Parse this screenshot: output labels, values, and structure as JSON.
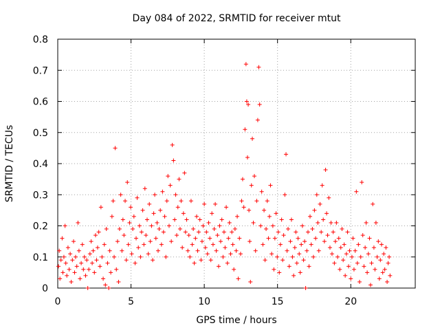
{
  "chart_data": {
    "type": "scatter",
    "title": "Day 084 of 2022, SRMTID for receiver mtut",
    "xlabel": "GPS time / hours",
    "ylabel": "SRMTID / TECUs",
    "xlim": [
      0,
      24.4
    ],
    "ylim": [
      0,
      0.8
    ],
    "xticks": [
      0,
      5,
      10,
      15,
      20
    ],
    "xtick_labels": [
      "0",
      "5",
      "10",
      "15",
      "20"
    ],
    "yticks": [
      0,
      0.1,
      0.2,
      0.3,
      0.4,
      0.5,
      0.6,
      0.7,
      0.8
    ],
    "ytick_labels": [
      "0",
      "0.1",
      "0.2",
      "0.3",
      "0.4",
      "0.5",
      "0.6",
      "0.7",
      "0.8"
    ],
    "grid": true,
    "marker": "+",
    "series": [
      {
        "name": "SRMTID",
        "color": "#ff0000",
        "x_range_hours": [
          0,
          22.7
        ],
        "points": [
          [
            0.05,
            0.07
          ],
          [
            0.1,
            0.12
          ],
          [
            0.15,
            0.03
          ],
          [
            0.22,
            0.09
          ],
          [
            0.3,
            0.16
          ],
          [
            0.35,
            0.05
          ],
          [
            0.42,
            0.1
          ],
          [
            0.5,
            0.2
          ],
          [
            0.55,
            0.08
          ],
          [
            0.62,
            0.04
          ],
          [
            0.7,
            0.13
          ],
          [
            0.78,
            0.06
          ],
          [
            0.85,
            0.11
          ],
          [
            0.92,
            0.02
          ],
          [
            1.0,
            0.09
          ],
          [
            1.08,
            0.15
          ],
          [
            1.15,
            0.05
          ],
          [
            1.22,
            0.1
          ],
          [
            1.3,
            0.07
          ],
          [
            1.38,
            0.21
          ],
          [
            1.45,
            0.12
          ],
          [
            1.52,
            0.03
          ],
          [
            1.6,
            0.08
          ],
          [
            1.68,
            0.14
          ],
          [
            1.75,
            0.06
          ],
          [
            1.82,
            0.1
          ],
          [
            1.9,
            0.04
          ],
          [
            1.98,
            0.09
          ],
          [
            2.05,
            0.0
          ],
          [
            2.12,
            0.06
          ],
          [
            2.2,
            0.11
          ],
          [
            2.28,
            0.15
          ],
          [
            2.35,
            0.08
          ],
          [
            2.42,
            0.12
          ],
          [
            2.5,
            0.05
          ],
          [
            2.58,
            0.17
          ],
          [
            2.65,
            0.09
          ],
          [
            2.72,
            0.13
          ],
          [
            2.8,
            0.18
          ],
          [
            2.88,
            0.07
          ],
          [
            2.95,
            0.26
          ],
          [
            3.02,
            0.1
          ],
          [
            3.1,
            0.03
          ],
          [
            3.18,
            0.14
          ],
          [
            3.25,
            0.01
          ],
          [
            3.32,
            0.19
          ],
          [
            3.4,
            0.08
          ],
          [
            3.48,
            0.0
          ],
          [
            3.55,
            0.12
          ],
          [
            3.62,
            0.05
          ],
          [
            3.7,
            0.23
          ],
          [
            3.78,
            0.28
          ],
          [
            3.85,
            0.1
          ],
          [
            3.92,
            0.45
          ],
          [
            4.0,
            0.06
          ],
          [
            4.08,
            0.15
          ],
          [
            4.15,
            0.02
          ],
          [
            4.22,
            0.19
          ],
          [
            4.3,
            0.3
          ],
          [
            4.38,
            0.12
          ],
          [
            4.45,
            0.22
          ],
          [
            4.52,
            0.17
          ],
          [
            4.6,
            0.28
          ],
          [
            4.68,
            0.09
          ],
          [
            4.75,
            0.34
          ],
          [
            4.82,
            0.14
          ],
          [
            4.9,
            0.21
          ],
          [
            4.98,
            0.26
          ],
          [
            5.05,
            0.11
          ],
          [
            5.12,
            0.19
          ],
          [
            5.2,
            0.23
          ],
          [
            5.28,
            0.08
          ],
          [
            5.35,
            0.16
          ],
          [
            5.42,
            0.29
          ],
          [
            5.5,
            0.13
          ],
          [
            5.58,
            0.2
          ],
          [
            5.65,
            0.1
          ],
          [
            5.72,
            0.18
          ],
          [
            5.8,
            0.25
          ],
          [
            5.88,
            0.14
          ],
          [
            5.95,
            0.32
          ],
          [
            6.02,
            0.17
          ],
          [
            6.1,
            0.22
          ],
          [
            6.18,
            0.11
          ],
          [
            6.25,
            0.27
          ],
          [
            6.32,
            0.15
          ],
          [
            6.4,
            0.2
          ],
          [
            6.48,
            0.09
          ],
          [
            6.55,
            0.24
          ],
          [
            6.62,
            0.3
          ],
          [
            6.7,
            0.16
          ],
          [
            6.78,
            0.21
          ],
          [
            6.85,
            0.12
          ],
          [
            6.92,
            0.19
          ],
          [
            7.0,
            0.25
          ],
          [
            7.08,
            0.14
          ],
          [
            7.15,
            0.31
          ],
          [
            7.22,
            0.18
          ],
          [
            7.3,
            0.23
          ],
          [
            7.38,
            0.1
          ],
          [
            7.45,
            0.28
          ],
          [
            7.52,
            0.36
          ],
          [
            7.6,
            0.2
          ],
          [
            7.68,
            0.33
          ],
          [
            7.75,
            0.15
          ],
          [
            7.82,
            0.46
          ],
          [
            7.9,
            0.41
          ],
          [
            7.98,
            0.22
          ],
          [
            8.05,
            0.3
          ],
          [
            8.12,
            0.17
          ],
          [
            8.2,
            0.26
          ],
          [
            8.28,
            0.35
          ],
          [
            8.35,
            0.19
          ],
          [
            8.42,
            0.28
          ],
          [
            8.5,
            0.13
          ],
          [
            8.58,
            0.24
          ],
          [
            8.65,
            0.37
          ],
          [
            8.72,
            0.18
          ],
          [
            8.8,
            0.22
          ],
          [
            8.88,
            0.12
          ],
          [
            8.95,
            0.17
          ],
          [
            9.02,
            0.1
          ],
          [
            9.1,
            0.28
          ],
          [
            9.18,
            0.14
          ],
          [
            9.25,
            0.19
          ],
          [
            9.32,
            0.08
          ],
          [
            9.4,
            0.16
          ],
          [
            9.48,
            0.23
          ],
          [
            9.55,
            0.12
          ],
          [
            9.62,
            0.18
          ],
          [
            9.7,
            0.22
          ],
          [
            9.78,
            0.09
          ],
          [
            9.85,
            0.15
          ],
          [
            9.92,
            0.2
          ],
          [
            10.0,
            0.27
          ],
          [
            10.08,
            0.13
          ],
          [
            10.15,
            0.18
          ],
          [
            10.22,
            0.11
          ],
          [
            10.3,
            0.21
          ],
          [
            10.38,
            0.16
          ],
          [
            10.45,
            0.09
          ],
          [
            10.52,
            0.24
          ],
          [
            10.6,
            0.14
          ],
          [
            10.68,
            0.19
          ],
          [
            10.75,
            0.27
          ],
          [
            10.82,
            0.12
          ],
          [
            10.9,
            0.17
          ],
          [
            10.98,
            0.07
          ],
          [
            11.05,
            0.2
          ],
          [
            11.12,
            0.15
          ],
          [
            11.2,
            0.22
          ],
          [
            11.28,
            0.1
          ],
          [
            11.35,
            0.18
          ],
          [
            11.42,
            0.13
          ],
          [
            11.5,
            0.26
          ],
          [
            11.58,
            0.08
          ],
          [
            11.65,
            0.16
          ],
          [
            11.72,
            0.21
          ],
          [
            11.8,
            0.11
          ],
          [
            11.88,
            0.18
          ],
          [
            11.95,
            0.14
          ],
          [
            12.02,
            0.06
          ],
          [
            12.1,
            0.19
          ],
          [
            12.18,
            0.12
          ],
          [
            12.25,
            0.23
          ],
          [
            12.32,
            0.03
          ],
          [
            12.4,
            0.16
          ],
          [
            12.48,
            0.11
          ],
          [
            12.55,
            0.28
          ],
          [
            12.62,
            0.35
          ],
          [
            12.7,
            0.26
          ],
          [
            12.78,
            0.51
          ],
          [
            12.85,
            0.72
          ],
          [
            12.9,
            0.6
          ],
          [
            12.95,
            0.42
          ],
          [
            13.0,
            0.59
          ],
          [
            13.05,
            0.25
          ],
          [
            13.1,
            0.15
          ],
          [
            13.15,
            0.02
          ],
          [
            13.22,
            0.33
          ],
          [
            13.28,
            0.48
          ],
          [
            13.35,
            0.21
          ],
          [
            13.42,
            0.36
          ],
          [
            13.5,
            0.12
          ],
          [
            13.58,
            0.28
          ],
          [
            13.65,
            0.54
          ],
          [
            13.72,
            0.71
          ],
          [
            13.78,
            0.59
          ],
          [
            13.85,
            0.2
          ],
          [
            13.92,
            0.31
          ],
          [
            14.0,
            0.14
          ],
          [
            14.08,
            0.25
          ],
          [
            14.15,
            0.09
          ],
          [
            14.22,
            0.19
          ],
          [
            14.3,
            0.28
          ],
          [
            14.38,
            0.16
          ],
          [
            14.45,
            0.23
          ],
          [
            14.52,
            0.33
          ],
          [
            14.6,
            0.11
          ],
          [
            14.68,
            0.2
          ],
          [
            14.75,
            0.06
          ],
          [
            14.82,
            0.16
          ],
          [
            14.9,
            0.24
          ],
          [
            14.98,
            0.1
          ],
          [
            15.05,
            0.18
          ],
          [
            15.12,
            0.05
          ],
          [
            15.2,
            0.14
          ],
          [
            15.28,
            0.22
          ],
          [
            15.35,
            0.09
          ],
          [
            15.42,
            0.17
          ],
          [
            15.5,
            0.3
          ],
          [
            15.58,
            0.43
          ],
          [
            15.65,
            0.12
          ],
          [
            15.72,
            0.19
          ],
          [
            15.8,
            0.07
          ],
          [
            15.88,
            0.15
          ],
          [
            15.95,
            0.22
          ],
          [
            16.02,
            0.1
          ],
          [
            16.1,
            0.04
          ],
          [
            16.18,
            0.13
          ],
          [
            16.25,
            0.18
          ],
          [
            16.32,
            0.08
          ],
          [
            16.4,
            0.16
          ],
          [
            16.48,
            0.11
          ],
          [
            16.55,
            0.05
          ],
          [
            16.62,
            0.14
          ],
          [
            16.7,
            0.2
          ],
          [
            16.78,
            0.09
          ],
          [
            16.85,
            0.15
          ],
          [
            16.92,
            0.0
          ],
          [
            17.0,
            0.12
          ],
          [
            17.08,
            0.18
          ],
          [
            17.15,
            0.07
          ],
          [
            17.22,
            0.23
          ],
          [
            17.3,
            0.14
          ],
          [
            17.38,
            0.19
          ],
          [
            17.45,
            0.1
          ],
          [
            17.52,
            0.25
          ],
          [
            17.6,
            0.16
          ],
          [
            17.68,
            0.3
          ],
          [
            17.75,
            0.21
          ],
          [
            17.82,
            0.12
          ],
          [
            17.9,
            0.27
          ],
          [
            17.98,
            0.18
          ],
          [
            18.05,
            0.33
          ],
          [
            18.12,
            0.22
          ],
          [
            18.2,
            0.15
          ],
          [
            18.28,
            0.38
          ],
          [
            18.35,
            0.24
          ],
          [
            18.42,
            0.17
          ],
          [
            18.5,
            0.29
          ],
          [
            18.58,
            0.13
          ],
          [
            18.65,
            0.21
          ],
          [
            18.72,
            0.11
          ],
          [
            18.8,
            0.18
          ],
          [
            18.88,
            0.08
          ],
          [
            18.95,
            0.15
          ],
          [
            19.02,
            0.21
          ],
          [
            19.1,
            0.1
          ],
          [
            19.18,
            0.16
          ],
          [
            19.25,
            0.06
          ],
          [
            19.32,
            0.13
          ],
          [
            19.4,
            0.19
          ],
          [
            19.48,
            0.09
          ],
          [
            19.55,
            0.14
          ],
          [
            19.62,
            0.04
          ],
          [
            19.7,
            0.11
          ],
          [
            19.78,
            0.18
          ],
          [
            19.85,
            0.07
          ],
          [
            19.92,
            0.12
          ],
          [
            20.0,
            0.03
          ],
          [
            20.08,
            0.1
          ],
          [
            20.15,
            0.16
          ],
          [
            20.22,
            0.06
          ],
          [
            20.3,
            0.12
          ],
          [
            20.38,
            0.31
          ],
          [
            20.45,
            0.08
          ],
          [
            20.52,
            0.14
          ],
          [
            20.6,
            0.02
          ],
          [
            20.68,
            0.1
          ],
          [
            20.75,
            0.34
          ],
          [
            20.82,
            0.17
          ],
          [
            20.9,
            0.07
          ],
          [
            20.98,
            0.13
          ],
          [
            21.05,
            0.21
          ],
          [
            21.12,
            0.05
          ],
          [
            21.2,
            0.11
          ],
          [
            21.28,
            0.16
          ],
          [
            21.35,
            0.01
          ],
          [
            21.42,
            0.08
          ],
          [
            21.5,
            0.27
          ],
          [
            21.58,
            0.13
          ],
          [
            21.65,
            0.06
          ],
          [
            21.72,
            0.21
          ],
          [
            21.8,
            0.1
          ],
          [
            21.88,
            0.15
          ],
          [
            21.95,
            0.03
          ],
          [
            22.02,
            0.09
          ],
          [
            22.1,
            0.14
          ],
          [
            22.18,
            0.05
          ],
          [
            22.25,
            0.11
          ],
          [
            22.32,
            0.06
          ],
          [
            22.4,
            0.13
          ],
          [
            22.48,
            0.02
          ],
          [
            22.55,
            0.08
          ],
          [
            22.62,
            0.1
          ],
          [
            22.68,
            0.04
          ]
        ]
      }
    ]
  }
}
